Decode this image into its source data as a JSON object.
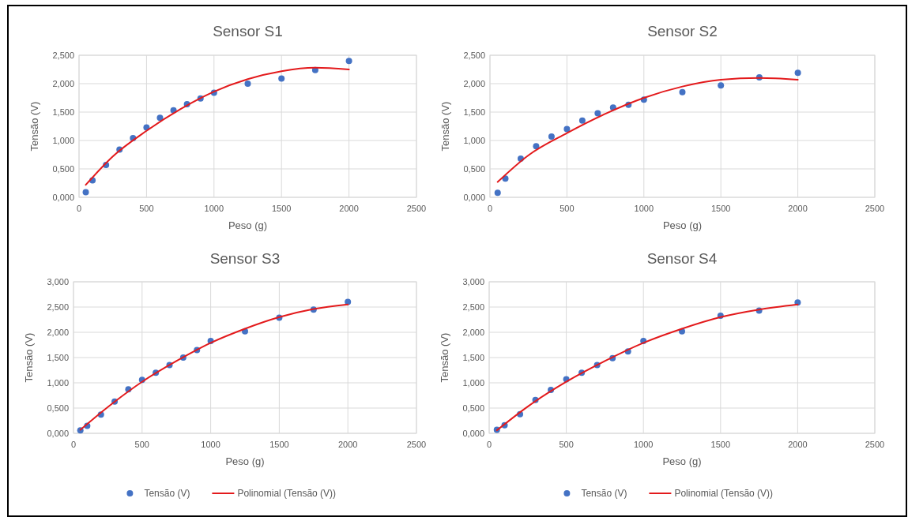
{
  "chart_data": [
    {
      "type": "scatter",
      "title": "Sensor S1",
      "xlabel": "Peso (g)",
      "ylabel": "Tensão (V)",
      "xlim": [
        0,
        2500
      ],
      "xticks": [
        0,
        500,
        1000,
        1500,
        2000,
        2500
      ],
      "ylim": [
        0,
        2.5
      ],
      "yticks": [
        {
          "value": 0,
          "label": "0,000"
        },
        {
          "value": 0.5,
          "label": "0,500"
        },
        {
          "value": 1,
          "label": "1,000"
        },
        {
          "value": 1.5,
          "label": "1,500"
        },
        {
          "value": 2,
          "label": "2,000"
        },
        {
          "value": 2.5,
          "label": "2,500"
        }
      ],
      "grid": true,
      "legend": false,
      "series": [
        {
          "type": "scatter",
          "color": "#4472c4",
          "marker": "circle",
          "x": [
            50,
            100,
            200,
            300,
            400,
            500,
            600,
            700,
            800,
            900,
            1000,
            1250,
            1500,
            1750,
            2000
          ],
          "values": [
            0.09,
            0.3,
            0.57,
            0.84,
            1.04,
            1.23,
            1.4,
            1.53,
            1.64,
            1.74,
            1.84,
            2.0,
            2.09,
            2.24,
            2.4
          ]
        },
        {
          "type": "line",
          "color": "#e31a1c",
          "marker": "none",
          "x": [
            50,
            250,
            500,
            750,
            1000,
            1250,
            1500,
            1750,
            2000
          ],
          "values": [
            0.22,
            0.72,
            1.17,
            1.55,
            1.86,
            2.08,
            2.22,
            2.28,
            2.25
          ]
        }
      ]
    },
    {
      "type": "scatter",
      "title": "Sensor S2",
      "xlabel": "Peso (g)",
      "ylabel": "Tensão (V)",
      "xlim": [
        0,
        2500
      ],
      "xticks": [
        0,
        500,
        1000,
        1500,
        2000,
        2500
      ],
      "ylim": [
        0,
        2.5
      ],
      "yticks": [
        {
          "value": 0,
          "label": "0,000"
        },
        {
          "value": 0.5,
          "label": "0,500"
        },
        {
          "value": 1,
          "label": "1,000"
        },
        {
          "value": 1.5,
          "label": "1,500"
        },
        {
          "value": 2,
          "label": "2,000"
        },
        {
          "value": 2.5,
          "label": "2,500"
        }
      ],
      "grid": true,
      "legend": false,
      "series": [
        {
          "type": "scatter",
          "color": "#4472c4",
          "marker": "circle",
          "x": [
            50,
            100,
            200,
            300,
            400,
            500,
            600,
            700,
            800,
            900,
            1000,
            1250,
            1500,
            1750,
            2000
          ],
          "values": [
            0.08,
            0.33,
            0.68,
            0.9,
            1.07,
            1.2,
            1.35,
            1.48,
            1.58,
            1.63,
            1.72,
            1.85,
            1.97,
            2.11,
            2.19
          ]
        },
        {
          "type": "line",
          "color": "#e31a1c",
          "marker": "none",
          "x": [
            50,
            250,
            500,
            750,
            1000,
            1250,
            1500,
            1750,
            2000
          ],
          "values": [
            0.27,
            0.74,
            1.13,
            1.47,
            1.75,
            1.95,
            2.07,
            2.1,
            2.07
          ]
        }
      ]
    },
    {
      "type": "scatter",
      "title": "Sensor S3",
      "xlabel": "Peso (g)",
      "ylabel": "Tensão (V)",
      "xlim": [
        0,
        2500
      ],
      "xticks": [
        0,
        500,
        1000,
        1500,
        2000,
        2500
      ],
      "ylim": [
        0,
        3
      ],
      "yticks": [
        {
          "value": 0,
          "label": "0,000"
        },
        {
          "value": 0.5,
          "label": "0,500"
        },
        {
          "value": 1,
          "label": "1,000"
        },
        {
          "value": 1.5,
          "label": "1,500"
        },
        {
          "value": 2,
          "label": "2,000"
        },
        {
          "value": 2.5,
          "label": "2,500"
        },
        {
          "value": 3,
          "label": "3,000"
        }
      ],
      "grid": true,
      "legend": "bottom",
      "series": [
        {
          "type": "scatter",
          "name": "Tensão (V)",
          "color": "#4472c4",
          "marker": "circle",
          "x": [
            50,
            100,
            200,
            300,
            400,
            500,
            600,
            700,
            800,
            900,
            1000,
            1250,
            1500,
            1750,
            2000
          ],
          "values": [
            0.06,
            0.15,
            0.37,
            0.63,
            0.87,
            1.06,
            1.2,
            1.35,
            1.5,
            1.65,
            1.83,
            2.02,
            2.29,
            2.45,
            2.6
          ]
        },
        {
          "type": "line",
          "name": "Polinomial (Tensão (V))",
          "color": "#e31a1c",
          "marker": "none",
          "x": [
            50,
            250,
            500,
            750,
            1000,
            1250,
            1500,
            1750,
            2000
          ],
          "values": [
            0.07,
            0.52,
            1.02,
            1.43,
            1.79,
            2.07,
            2.3,
            2.46,
            2.55
          ]
        }
      ]
    },
    {
      "type": "scatter",
      "title": "Sensor S4",
      "xlabel": "Peso (g)",
      "ylabel": "Tensão (V)",
      "xlim": [
        0,
        2500
      ],
      "xticks": [
        0,
        500,
        1000,
        1500,
        2000,
        2500
      ],
      "ylim": [
        0,
        3
      ],
      "yticks": [
        {
          "value": 0,
          "label": "0,000"
        },
        {
          "value": 0.5,
          "label": "0,500"
        },
        {
          "value": 1,
          "label": "1,000"
        },
        {
          "value": 1.5,
          "label": "1,500"
        },
        {
          "value": 2,
          "label": "2,000"
        },
        {
          "value": 2.5,
          "label": "2,500"
        },
        {
          "value": 3,
          "label": "3,000"
        }
      ],
      "grid": true,
      "legend": "bottom",
      "series": [
        {
          "type": "scatter",
          "name": "Tensão (V)",
          "color": "#4472c4",
          "marker": "circle",
          "x": [
            50,
            100,
            200,
            300,
            400,
            500,
            600,
            700,
            800,
            900,
            1000,
            1250,
            1500,
            1750,
            2000
          ],
          "values": [
            0.07,
            0.16,
            0.38,
            0.66,
            0.86,
            1.07,
            1.2,
            1.35,
            1.49,
            1.62,
            1.83,
            2.02,
            2.33,
            2.43,
            2.59
          ]
        },
        {
          "type": "line",
          "name": "Polinomial (Tensão (V))",
          "color": "#e31a1c",
          "marker": "none",
          "x": [
            50,
            250,
            500,
            750,
            1000,
            1250,
            1500,
            1750,
            2000
          ],
          "values": [
            0.06,
            0.53,
            1.02,
            1.43,
            1.79,
            2.07,
            2.3,
            2.45,
            2.55
          ]
        }
      ]
    }
  ]
}
